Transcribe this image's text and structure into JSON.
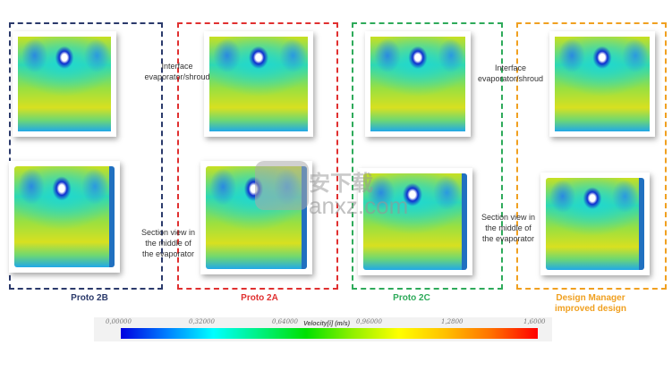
{
  "panels": [
    {
      "label": "Proto 2B",
      "color": "#2b3a6b"
    },
    {
      "label": "Proto 2A",
      "color": "#e03030"
    },
    {
      "label": "Proto 2C",
      "color": "#2eaa5a"
    },
    {
      "label": "Design Manager\nimproved design",
      "color": "#f0a020"
    }
  ],
  "notes": {
    "interface": "Interface\nevaporator/shroud",
    "section": "Section view in\nthe middle of\nthe evaporator"
  },
  "colorbar": {
    "title": "Velocity[i] (m/s)",
    "ticks": [
      "0,00000",
      "0,32000",
      "0,64000",
      "0,96000",
      "1,2800",
      "1,6000"
    ]
  },
  "watermark": {
    "text": "anxz.com",
    "cn": "安下载"
  }
}
